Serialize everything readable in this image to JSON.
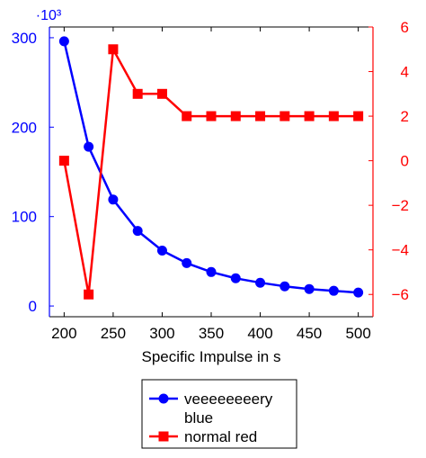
{
  "chart_data": {
    "type": "line",
    "title": "",
    "xlabel": "Specific Impulse in s",
    "x": [
      200,
      225,
      250,
      275,
      300,
      325,
      350,
      375,
      400,
      425,
      450,
      475,
      500
    ],
    "x_ticks": [
      200,
      250,
      300,
      350,
      400,
      450,
      500
    ],
    "xlim": [
      185,
      515
    ],
    "left_axis": {
      "color": "#0000ff",
      "scale_label": "·10³",
      "ylim": [
        -12,
        312
      ],
      "ticks": [
        0,
        100,
        200,
        300
      ]
    },
    "right_axis": {
      "color": "#ff0000",
      "ylim": [
        -7,
        6
      ],
      "ticks": [
        -6,
        -4,
        -2,
        0,
        2,
        4,
        6
      ]
    },
    "series": [
      {
        "name": "veeeeeeeery blue",
        "legend_lines": [
          "veeeeeeeery",
          "blue"
        ],
        "axis": "left",
        "color": "#0000ff",
        "marker": "circle",
        "values": [
          296,
          178,
          119,
          84,
          62,
          48,
          38,
          31,
          26,
          22,
          19,
          17,
          15
        ]
      },
      {
        "name": "normal red",
        "legend_lines": [
          "normal red"
        ],
        "axis": "right",
        "color": "#ff0000",
        "marker": "square",
        "values": [
          0,
          -6,
          5,
          3,
          3,
          2,
          2,
          2,
          2,
          2,
          2,
          2,
          2
        ]
      }
    ],
    "legend_position": "bottom-center",
    "grid": false
  }
}
